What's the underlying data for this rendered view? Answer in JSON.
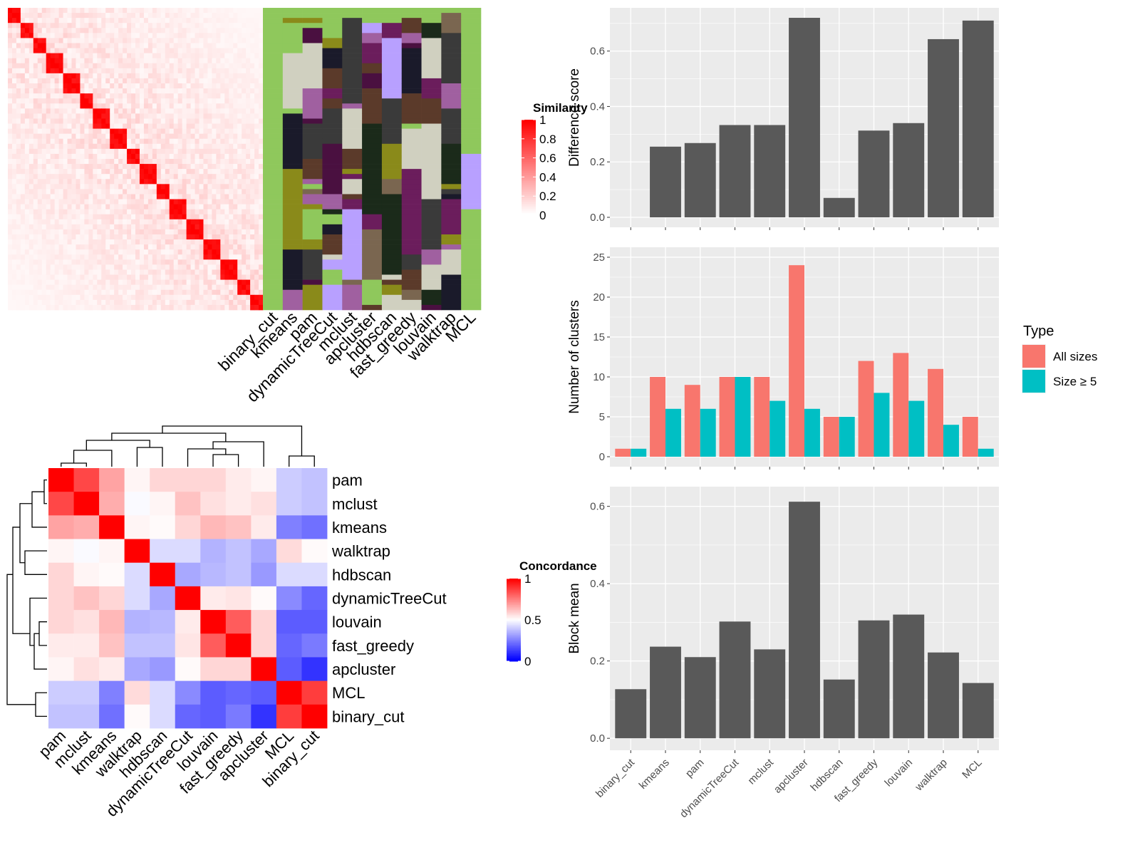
{
  "methods_top": [
    "binary_cut",
    "kmeans",
    "pam",
    "dynamicTreeCut",
    "mclust",
    "apcluster",
    "hdbscan",
    "fast_greedy",
    "louvain",
    "walktrap",
    "MCL"
  ],
  "similarity_legend": {
    "title": "Similarity",
    "ticks": [
      "0",
      "0.2",
      "0.4",
      "0.6",
      "0.8",
      "1"
    ]
  },
  "concordance_legend": {
    "title": "Concordance",
    "ticks": [
      "0",
      "0.5",
      "1"
    ]
  },
  "concordance_heatmap": {
    "rows": [
      "pam",
      "mclust",
      "kmeans",
      "walktrap",
      "hdbscan",
      "dynamicTreeCut",
      "louvain",
      "fast_greedy",
      "apcluster",
      "MCL",
      "binary_cut"
    ],
    "cols": [
      "pam",
      "mclust",
      "kmeans",
      "walktrap",
      "hdbscan",
      "dynamicTreeCut",
      "louvain",
      "fast_greedy",
      "apcluster",
      "MCL",
      "binary_cut"
    ],
    "values": [
      [
        1.0,
        0.86,
        0.68,
        0.52,
        0.58,
        0.58,
        0.58,
        0.54,
        0.52,
        0.4,
        0.38
      ],
      [
        0.86,
        1.0,
        0.66,
        0.49,
        0.52,
        0.62,
        0.56,
        0.54,
        0.56,
        0.4,
        0.38
      ],
      [
        0.68,
        0.66,
        1.0,
        0.52,
        0.51,
        0.58,
        0.64,
        0.62,
        0.54,
        0.25,
        0.22
      ],
      [
        0.52,
        0.49,
        0.52,
        1.0,
        0.43,
        0.43,
        0.35,
        0.38,
        0.33,
        0.57,
        0.51
      ],
      [
        0.58,
        0.52,
        0.51,
        0.43,
        1.0,
        0.33,
        0.36,
        0.38,
        0.3,
        0.43,
        0.43
      ],
      [
        0.58,
        0.62,
        0.58,
        0.43,
        0.33,
        1.0,
        0.54,
        0.55,
        0.51,
        0.27,
        0.2
      ],
      [
        0.58,
        0.56,
        0.64,
        0.35,
        0.36,
        0.54,
        1.0,
        0.82,
        0.58,
        0.18,
        0.18
      ],
      [
        0.54,
        0.54,
        0.62,
        0.38,
        0.38,
        0.55,
        0.82,
        1.0,
        0.58,
        0.2,
        0.24
      ],
      [
        0.52,
        0.56,
        0.54,
        0.33,
        0.3,
        0.51,
        0.58,
        0.58,
        1.0,
        0.18,
        0.1
      ],
      [
        0.4,
        0.4,
        0.25,
        0.57,
        0.43,
        0.27,
        0.18,
        0.2,
        0.18,
        1.0,
        0.88
      ],
      [
        0.38,
        0.38,
        0.22,
        0.51,
        0.43,
        0.2,
        0.18,
        0.24,
        0.1,
        0.88,
        1.0
      ]
    ]
  },
  "chart_data": [
    {
      "type": "bar",
      "categories": [
        "binary_cut",
        "kmeans",
        "pam",
        "dynamicTreeCut",
        "mclust",
        "apcluster",
        "hdbscan",
        "fast_greedy",
        "louvain",
        "walktrap",
        "MCL"
      ],
      "values": [
        0.0,
        0.255,
        0.268,
        0.333,
        0.333,
        0.72,
        0.07,
        0.313,
        0.34,
        0.643,
        0.71
      ],
      "ylabel": "Difference score",
      "ylim": [
        0,
        0.72
      ],
      "yticks": [
        "0.0",
        "0.2",
        "0.4",
        "0.6"
      ],
      "grid": true
    },
    {
      "type": "bar",
      "categories": [
        "binary_cut",
        "kmeans",
        "pam",
        "dynamicTreeCut",
        "mclust",
        "apcluster",
        "hdbscan",
        "fast_greedy",
        "louvain",
        "walktrap",
        "MCL"
      ],
      "series": [
        {
          "name": "All sizes",
          "color": "#F8766D",
          "values": [
            1,
            10,
            9,
            10,
            10,
            24,
            5,
            12,
            13,
            11,
            5
          ]
        },
        {
          "name": "Size ≥ 5",
          "color": "#00BFC4",
          "values": [
            1,
            6,
            6,
            10,
            7,
            6,
            5,
            8,
            7,
            4,
            1
          ]
        }
      ],
      "ylabel": "Number of clusters",
      "ylim": [
        0,
        25
      ],
      "yticks": [
        "0",
        "5",
        "10",
        "15",
        "20",
        "25"
      ],
      "legend_title": "Type",
      "legend": "right",
      "grid": true
    },
    {
      "type": "bar",
      "categories": [
        "binary_cut",
        "kmeans",
        "pam",
        "dynamicTreeCut",
        "mclust",
        "apcluster",
        "hdbscan",
        "fast_greedy",
        "louvain",
        "walktrap",
        "MCL"
      ],
      "values": [
        0.127,
        0.237,
        0.21,
        0.302,
        0.23,
        0.612,
        0.152,
        0.305,
        0.32,
        0.222,
        0.143
      ],
      "ylabel": "Block mean",
      "ylim": [
        0,
        0.62
      ],
      "yticks": [
        "0.0",
        "0.2",
        "0.4",
        "0.6"
      ],
      "grid": true
    }
  ]
}
